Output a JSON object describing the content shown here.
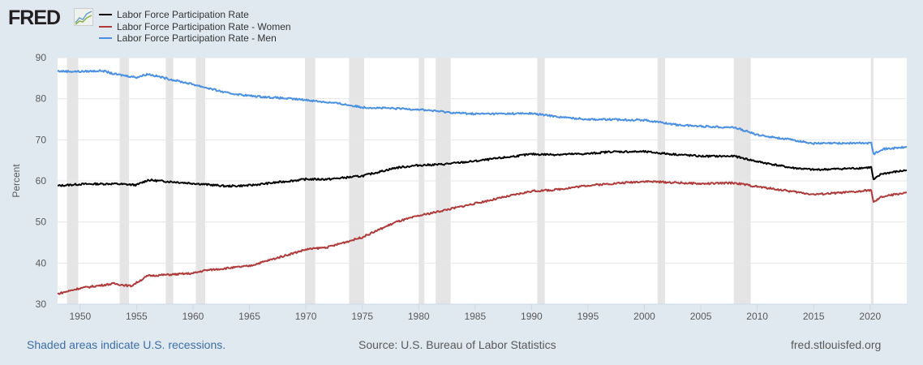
{
  "logo": "FRED",
  "footer": {
    "left": "Shaded areas indicate U.S. recessions.",
    "center": "Source: U.S. Bureau of Labor Statistics",
    "right": "fred.stlouisfed.org"
  },
  "chart_data": {
    "type": "line",
    "ylabel": "Percent",
    "ylim": [
      30,
      90
    ],
    "xlim": [
      1948.0,
      2023.25
    ],
    "yticks": [
      30,
      40,
      50,
      60,
      70,
      80,
      90
    ],
    "xticks": [
      1950,
      1955,
      1960,
      1965,
      1970,
      1975,
      1980,
      1985,
      1990,
      1995,
      2000,
      2005,
      2010,
      2015,
      2020
    ],
    "grid": true,
    "legend": "top-left",
    "recessions": [
      [
        1948.83,
        1949.83
      ],
      [
        1953.5,
        1954.33
      ],
      [
        1957.58,
        1958.25
      ],
      [
        1960.25,
        1961.08
      ],
      [
        1969.92,
        1970.83
      ],
      [
        1973.83,
        1975.17
      ],
      [
        1980.0,
        1980.5
      ],
      [
        1981.5,
        1982.83
      ],
      [
        1990.5,
        1991.17
      ],
      [
        2001.17,
        2001.83
      ],
      [
        2007.92,
        2009.42
      ],
      [
        2020.08,
        2020.25
      ]
    ],
    "series": [
      {
        "name": "Labor Force Participation Rate",
        "color": "#000000",
        "points": [
          [
            1948,
            58.8
          ],
          [
            1950,
            59.2
          ],
          [
            1953,
            59.3
          ],
          [
            1955,
            59.0
          ],
          [
            1956,
            60.2
          ],
          [
            1960,
            59.4
          ],
          [
            1963,
            58.7
          ],
          [
            1965,
            58.9
          ],
          [
            1970,
            60.4
          ],
          [
            1972,
            60.4
          ],
          [
            1975,
            61.2
          ],
          [
            1978,
            63.2
          ],
          [
            1980,
            63.8
          ],
          [
            1982,
            64.0
          ],
          [
            1985,
            64.8
          ],
          [
            1990,
            66.5
          ],
          [
            1992,
            66.4
          ],
          [
            1995,
            66.6
          ],
          [
            1997,
            67.1
          ],
          [
            2000,
            67.1
          ],
          [
            2002,
            66.6
          ],
          [
            2005,
            66.0
          ],
          [
            2008,
            66.0
          ],
          [
            2010,
            64.7
          ],
          [
            2013,
            63.2
          ],
          [
            2015,
            62.7
          ],
          [
            2019,
            63.1
          ],
          [
            2020.1,
            63.3
          ],
          [
            2020.3,
            60.2
          ],
          [
            2021,
            61.7
          ],
          [
            2023.25,
            62.6
          ]
        ]
      },
      {
        "name": "Labor Force Participation Rate - Women",
        "color": "#b03a3a",
        "points": [
          [
            1948,
            32.5
          ],
          [
            1950,
            33.9
          ],
          [
            1953,
            35.0
          ],
          [
            1954.5,
            34.4
          ],
          [
            1956,
            36.9
          ],
          [
            1960,
            37.5
          ],
          [
            1961,
            38.2
          ],
          [
            1965,
            39.3
          ],
          [
            1970,
            43.3
          ],
          [
            1972,
            43.9
          ],
          [
            1975,
            46.3
          ],
          [
            1978,
            50.0
          ],
          [
            1980,
            51.5
          ],
          [
            1985,
            54.5
          ],
          [
            1990,
            57.5
          ],
          [
            1992,
            57.8
          ],
          [
            1995,
            58.9
          ],
          [
            2000,
            59.9
          ],
          [
            2005,
            59.3
          ],
          [
            2008,
            59.5
          ],
          [
            2010,
            58.6
          ],
          [
            2015,
            56.7
          ],
          [
            2019,
            57.4
          ],
          [
            2020.1,
            57.8
          ],
          [
            2020.3,
            54.7
          ],
          [
            2021,
            56.1
          ],
          [
            2023.25,
            57.2
          ]
        ]
      },
      {
        "name": "Labor Force Participation Rate - Men",
        "color": "#4a90e2",
        "points": [
          [
            1948,
            86.7
          ],
          [
            1950,
            86.6
          ],
          [
            1952,
            86.8
          ],
          [
            1953,
            86.0
          ],
          [
            1955,
            85.2
          ],
          [
            1956,
            86.0
          ],
          [
            1958,
            84.7
          ],
          [
            1960,
            83.5
          ],
          [
            1963,
            81.4
          ],
          [
            1965,
            80.7
          ],
          [
            1970,
            79.7
          ],
          [
            1973,
            78.8
          ],
          [
            1975,
            77.9
          ],
          [
            1980,
            77.4
          ],
          [
            1983,
            76.6
          ],
          [
            1985,
            76.3
          ],
          [
            1990,
            76.4
          ],
          [
            1993,
            75.4
          ],
          [
            1995,
            75.0
          ],
          [
            2000,
            74.8
          ],
          [
            2003,
            73.6
          ],
          [
            2005,
            73.3
          ],
          [
            2008,
            73.0
          ],
          [
            2010,
            71.2
          ],
          [
            2013,
            70.0
          ],
          [
            2015,
            69.1
          ],
          [
            2019,
            69.2
          ],
          [
            2020.1,
            69.2
          ],
          [
            2020.3,
            66.5
          ],
          [
            2021,
            67.7
          ],
          [
            2023.25,
            68.2
          ]
        ]
      }
    ]
  }
}
